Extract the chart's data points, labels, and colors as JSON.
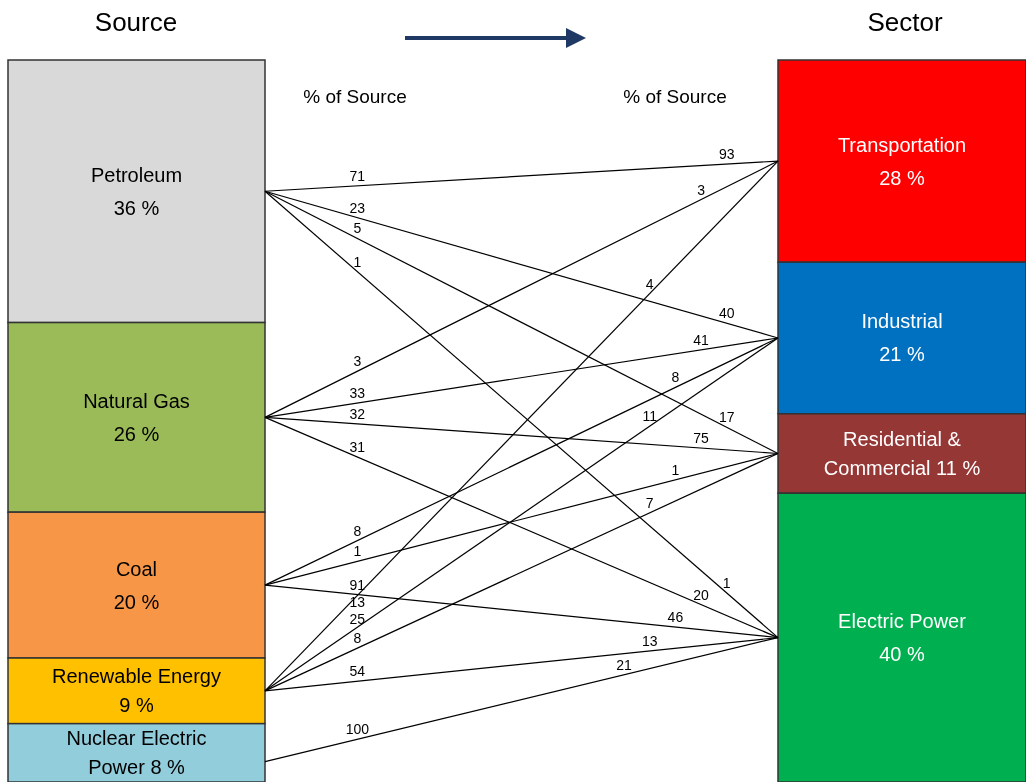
{
  "chart_data": {
    "type": "other",
    "categories": [
      "Petroleum",
      "Natural Gas",
      "Coal",
      "Renewable Energy",
      "Nuclear Electric Power",
      "Transportation",
      "Industrial",
      "Residential & Commercial",
      "Electric Power"
    ],
    "series": [
      {
        "values": [
          36,
          26,
          20,
          9,
          8,
          null,
          null,
          null,
          null
        ],
        "value_labels": [
          "36 %",
          "26 %",
          "20 %",
          "9 %",
          "8 %",
          null,
          null,
          null,
          null
        ],
        "colors": [
          "#d9d9d9",
          "#9bbb59",
          "#f79646",
          "#ffc000",
          "#92cddc",
          null,
          null,
          null,
          null
        ]
      },
      {
        "values": [
          null,
          null,
          null,
          null,
          null,
          28,
          21,
          11,
          40
        ],
        "value_labels": [
          null,
          null,
          null,
          null,
          null,
          "28 %",
          "21 %",
          "11 %",
          "40 %"
        ],
        "colors": [
          null,
          null,
          null,
          null,
          null,
          "#ff0000",
          "#0070c0",
          "#953735",
          "#00b050"
        ]
      }
    ],
    "annotations": [
      "Source",
      "Sector",
      "% of Source",
      "% of Source",
      {
        "text": "71",
        "x": "Petroleum",
        "y": "Transportation"
      },
      {
        "text": "93",
        "x": "Transportation",
        "y": "Petroleum"
      },
      {
        "text": "23",
        "x": "Petroleum",
        "y": "Industrial"
      },
      {
        "text": "40",
        "x": "Industrial",
        "y": "Petroleum"
      },
      {
        "text": "5",
        "x": "Petroleum",
        "y": "Residential & Commercial"
      },
      {
        "text": "17",
        "x": "Residential & Commercial",
        "y": "Petroleum"
      },
      {
        "text": "1",
        "x": "Petroleum",
        "y": "Electric Power"
      },
      {
        "text": "1",
        "x": "Electric Power",
        "y": "Petroleum"
      },
      {
        "text": "3",
        "x": "Natural Gas",
        "y": "Transportation"
      },
      {
        "text": "3",
        "x": "Transportation",
        "y": "Natural Gas"
      },
      {
        "text": "33",
        "x": "Natural Gas",
        "y": "Industrial"
      },
      {
        "text": "41",
        "x": "Industrial",
        "y": "Natural Gas"
      },
      {
        "text": "32",
        "x": "Natural Gas",
        "y": "Residential & Commercial"
      },
      {
        "text": "75",
        "x": "Residential & Commercial",
        "y": "Natural Gas"
      },
      {
        "text": "31",
        "x": "Natural Gas",
        "y": "Electric Power"
      },
      {
        "text": "20",
        "x": "Electric Power",
        "y": "Natural Gas"
      },
      {
        "text": "8",
        "x": "Coal",
        "y": "Industrial"
      },
      {
        "text": "8",
        "x": "Industrial",
        "y": "Coal"
      },
      {
        "text": "1",
        "x": "Coal",
        "y": "Residential & Commercial"
      },
      {
        "text": "1",
        "x": "Residential & Commercial",
        "y": "Coal"
      },
      {
        "text": "91",
        "x": "Coal",
        "y": "Electric Power"
      },
      {
        "text": "46",
        "x": "Electric Power",
        "y": "Coal"
      },
      {
        "text": "13",
        "x": "Renewable Energy",
        "y": "Transportation"
      },
      {
        "text": "4",
        "x": "Transportation",
        "y": "Renewable Energy"
      },
      {
        "text": "25",
        "x": "Renewable Energy",
        "y": "Industrial"
      },
      {
        "text": "11",
        "x": "Industrial",
        "y": "Renewable Energy"
      },
      {
        "text": "8",
        "x": "Renewable Energy",
        "y": "Residential & Commercial"
      },
      {
        "text": "7",
        "x": "Residential & Commercial",
        "y": "Renewable Energy"
      },
      {
        "text": "54",
        "x": "Renewable Energy",
        "y": "Electric Power"
      },
      {
        "text": "13",
        "x": "Electric Power",
        "y": "Renewable Energy"
      },
      {
        "text": "100",
        "x": "Nuclear Electric Power",
        "y": "Electric Power"
      },
      {
        "text": "21",
        "x": "Electric Power",
        "y": "Nuclear Electric Power"
      }
    ]
  }
}
